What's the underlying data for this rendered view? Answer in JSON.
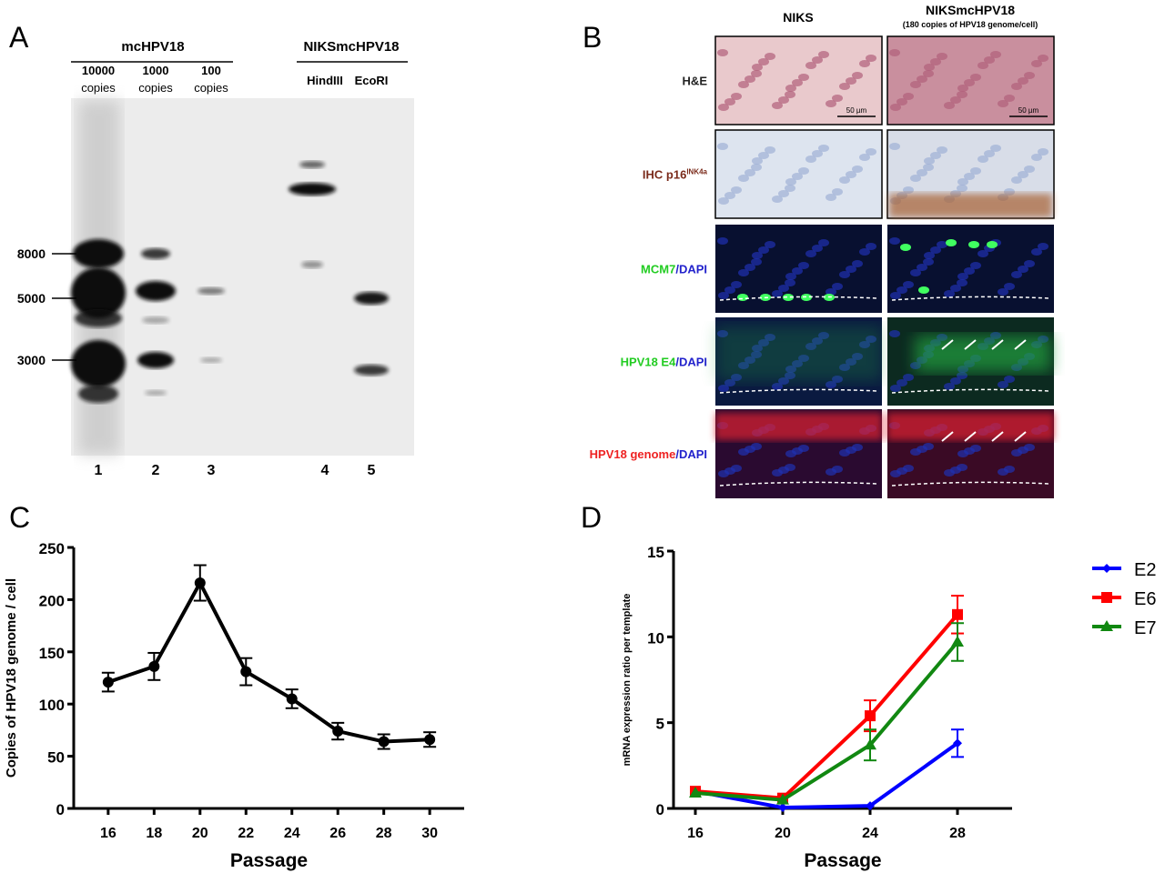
{
  "panel_labels": [
    "A",
    "B",
    "C",
    "D"
  ],
  "panelA": {
    "group1": "mcHPV18",
    "group2": "NIKSmcHPV18",
    "lane_headers": [
      [
        "10000",
        "copies"
      ],
      [
        "1000",
        "copies"
      ],
      [
        "100",
        "copies"
      ],
      [
        "HindIII",
        ""
      ],
      [
        "EcoRI",
        ""
      ]
    ],
    "lane_numbers": [
      "1",
      "2",
      "3",
      "4",
      "5"
    ],
    "markers": [
      "8000",
      "5000",
      "3000"
    ]
  },
  "panelB": {
    "col1": "NIKS",
    "col2": "NIKSmcHPV18",
    "col2_sub": "(180 copies of HPV18 genome/cell)",
    "scale_bar": "50 µm",
    "rows": [
      {
        "parts": [
          {
            "t": "H&E",
            "c": "#222222"
          }
        ]
      },
      {
        "parts": [
          {
            "t": "IHC p16",
            "c": "#7a2a1a"
          },
          {
            "t": "INK4a",
            "c": "#7a2a1a",
            "sup": true
          }
        ]
      },
      {
        "parts": [
          {
            "t": "MCM7",
            "c": "#22cc22"
          },
          {
            "t": "/DAPI",
            "c": "#2222cc"
          }
        ]
      },
      {
        "parts": [
          {
            "t": "HPV18 E4",
            "c": "#22cc22"
          },
          {
            "t": "/DAPI",
            "c": "#2222cc"
          }
        ]
      },
      {
        "parts": [
          {
            "t": "HPV18 genome",
            "c": "#ee2222"
          },
          {
            "t": "/DAPI",
            "c": "#2222cc"
          }
        ]
      }
    ]
  },
  "chart_data": [
    {
      "type": "line",
      "xlabel": "Passage",
      "ylabel": "Copies of HPV18 genome / cell",
      "x": [
        16,
        18,
        20,
        22,
        24,
        26,
        28,
        30
      ],
      "xticks": [
        "16",
        "18",
        "20",
        "22",
        "24",
        "26",
        "28",
        "30"
      ],
      "yticks": [
        "0",
        "50",
        "100",
        "150",
        "200",
        "250"
      ],
      "ylim": [
        0,
        250
      ],
      "xlim": [
        14.5,
        31.5
      ],
      "series": [
        {
          "values": [
            121,
            136,
            216,
            131,
            105,
            74,
            64,
            66
          ],
          "errors": [
            9,
            13,
            17,
            13,
            9,
            8,
            7,
            7
          ],
          "color": "#000000",
          "marker": "circle"
        }
      ]
    },
    {
      "type": "line",
      "xlabel": "Passage",
      "ylabel": "mRNA expression ratio per template",
      "x": [
        16,
        20,
        24,
        28
      ],
      "xticks": [
        "16",
        "20",
        "24",
        "28"
      ],
      "yticks": [
        "0",
        "5",
        "10",
        "15"
      ],
      "ylim": [
        0,
        15
      ],
      "xlim": [
        15,
        30.5
      ],
      "legend": "right",
      "series": [
        {
          "name": "E2",
          "values": [
            1.0,
            0.05,
            0.15,
            3.8
          ],
          "errors": [
            0,
            0,
            0,
            0.8
          ],
          "color": "#0000ff",
          "marker": "diamond"
        },
        {
          "name": "E6",
          "values": [
            1.0,
            0.6,
            5.4,
            11.3
          ],
          "errors": [
            0,
            0,
            0.9,
            1.1
          ],
          "color": "#ff0000",
          "marker": "square"
        },
        {
          "name": "E7",
          "values": [
            0.9,
            0.5,
            3.7,
            9.7
          ],
          "errors": [
            0,
            0,
            0.9,
            1.1
          ],
          "color": "#118811",
          "marker": "triangle"
        }
      ]
    }
  ]
}
